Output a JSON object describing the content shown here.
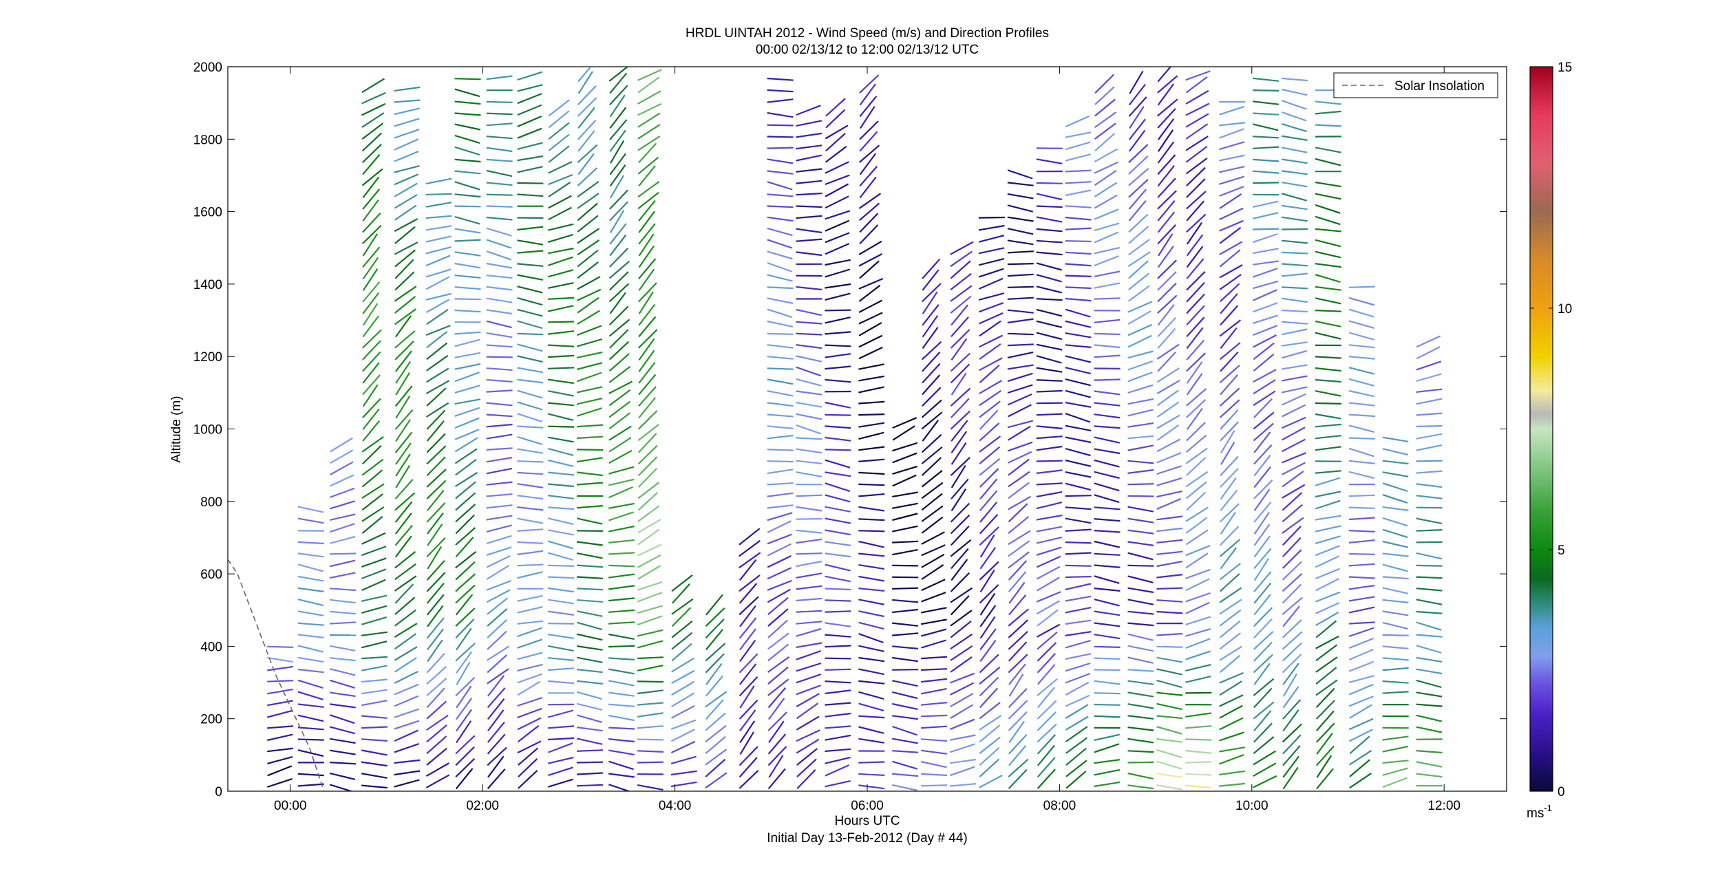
{
  "chart_data": {
    "type": "barb-profile",
    "title": "HRDL UINTAH 2012 - Wind Speed (m/s) and Direction Profiles",
    "subtitle": "00:00 02/13/12 to 12:00 02/13/12  UTC",
    "xlabel": "Hours UTC",
    "xlabel2": "Initial Day 13-Feb-2012 (Day # 44)",
    "ylabel": "Altitude (m)",
    "xlim_hours": [
      -0.65,
      12.65
    ],
    "ylim": [
      0,
      2000
    ],
    "x_ticks": [
      {
        "value": 0,
        "label": "00:00"
      },
      {
        "value": 2,
        "label": "02:00"
      },
      {
        "value": 4,
        "label": "04:00"
      },
      {
        "value": 6,
        "label": "06:00"
      },
      {
        "value": 8,
        "label": "08:00"
      },
      {
        "value": 10,
        "label": "10:00"
      },
      {
        "value": 12,
        "label": "12:00"
      }
    ],
    "y_ticks": [
      {
        "value": 0,
        "label": "0"
      },
      {
        "value": 200,
        "label": "200"
      },
      {
        "value": 400,
        "label": "400"
      },
      {
        "value": 600,
        "label": "600"
      },
      {
        "value": 800,
        "label": "800"
      },
      {
        "value": 1000,
        "label": "1000"
      },
      {
        "value": 1200,
        "label": "1200"
      },
      {
        "value": 1400,
        "label": "1400"
      },
      {
        "value": 1600,
        "label": "1600"
      },
      {
        "value": 1800,
        "label": "1800"
      },
      {
        "value": 2000,
        "label": "2000"
      }
    ],
    "legend": {
      "position": "top-right",
      "entries": [
        {
          "label": "Solar Insolation",
          "style": "dashed",
          "color": "#666666"
        }
      ]
    },
    "colorbar": {
      "min": 0,
      "max": 15,
      "ticks": [
        {
          "value": 0,
          "label": "0"
        },
        {
          "value": 5,
          "label": "5"
        },
        {
          "value": 10,
          "label": "10"
        },
        {
          "value": 15,
          "label": "15"
        }
      ],
      "unit_base": "ms",
      "unit_exp": "-1",
      "stops": [
        {
          "value": 0,
          "color": "#0a0a3a"
        },
        {
          "value": 0.8,
          "color": "#2a0f8c"
        },
        {
          "value": 1.6,
          "color": "#4a22c8"
        },
        {
          "value": 2.2,
          "color": "#6a50e0"
        },
        {
          "value": 2.8,
          "color": "#7fa0ec"
        },
        {
          "value": 3.4,
          "color": "#5aa0d8"
        },
        {
          "value": 3.9,
          "color": "#2d8a7a"
        },
        {
          "value": 4.4,
          "color": "#0a6a1e"
        },
        {
          "value": 5.0,
          "color": "#0c8a10"
        },
        {
          "value": 5.8,
          "color": "#3aa03a"
        },
        {
          "value": 6.8,
          "color": "#8acb8a"
        },
        {
          "value": 7.5,
          "color": "#c8e6c0"
        },
        {
          "value": 7.8,
          "color": "#b8b8b8"
        },
        {
          "value": 8.3,
          "color": "#f4ec9a"
        },
        {
          "value": 9.0,
          "color": "#f2d000"
        },
        {
          "value": 10.0,
          "color": "#f0a010"
        },
        {
          "value": 11.0,
          "color": "#d88a2a"
        },
        {
          "value": 12.0,
          "color": "#9a6a50"
        },
        {
          "value": 13.0,
          "color": "#e06070"
        },
        {
          "value": 14.0,
          "color": "#e83a5a"
        },
        {
          "value": 15.0,
          "color": "#a0001e"
        }
      ]
    },
    "solar_insolation": [
      {
        "t": -0.65,
        "z": 640
      },
      {
        "t": -0.55,
        "z": 600
      },
      {
        "t": -0.15,
        "z": 320
      },
      {
        "t": 0.2,
        "z": 120
      },
      {
        "t": 0.35,
        "z": 0
      }
    ],
    "profiles": [
      {
        "t": -0.2,
        "top": 420,
        "sfc": 0.2,
        "mid": 3,
        "dir": 1
      },
      {
        "t": 0.12,
        "top": 800,
        "sfc": 0.3,
        "mid": 3.2,
        "dir": 1
      },
      {
        "t": 0.45,
        "top": 960,
        "sfc": 0.2,
        "mid": 3.4,
        "dir": 1
      },
      {
        "t": 0.78,
        "top": 1950,
        "sfc": 0.4,
        "mid": 4.8,
        "dir": 1
      },
      {
        "t": 1.12,
        "top": 1940,
        "sfc": 0.5,
        "mid": 4.6,
        "dir": 1
      },
      {
        "t": 1.45,
        "top": 1700,
        "sfc": 0.6,
        "mid": 4.2,
        "dir": 1
      },
      {
        "t": 1.75,
        "top": 1990,
        "sfc": 0.6,
        "mid": 4.0,
        "dir": 1
      },
      {
        "t": 2.08,
        "top": 1980,
        "sfc": 0.7,
        "mid": 3.0,
        "dir": 1
      },
      {
        "t": 2.4,
        "top": 1980,
        "sfc": 0.8,
        "mid": 3.6,
        "dir": 1
      },
      {
        "t": 2.72,
        "top": 1900,
        "sfc": 0.9,
        "mid": 3.8,
        "dir": 1
      },
      {
        "t": 3.02,
        "top": 1990,
        "sfc": 1.0,
        "mid": 4.4,
        "dir": 1
      },
      {
        "t": 3.35,
        "top": 1990,
        "sfc": 1.0,
        "mid": 4.8,
        "dir": 1
      },
      {
        "t": 3.65,
        "top": 1990,
        "sfc": 1.2,
        "mid": 6.0,
        "dir": 1
      },
      {
        "t": 4.0,
        "top": 590,
        "sfc": 1.4,
        "mid": 4.4,
        "dir": 1
      },
      {
        "t": 4.35,
        "top": 500,
        "sfc": 1.6,
        "mid": 4.6,
        "dir": 1
      },
      {
        "t": 4.7,
        "top": 700,
        "sfc": 1.0,
        "mid": 2.0,
        "dir": 1
      },
      {
        "t": 5.0,
        "top": 1980,
        "sfc": 1.4,
        "mid": 2.4,
        "dir": 1
      },
      {
        "t": 5.3,
        "top": 1900,
        "sfc": 1.4,
        "mid": 2.0,
        "dir": 1
      },
      {
        "t": 5.6,
        "top": 1900,
        "sfc": 1.6,
        "mid": 1.4,
        "dir": 1
      },
      {
        "t": 5.95,
        "top": 1950,
        "sfc": 2.0,
        "mid": 0.8,
        "dir": 1
      },
      {
        "t": 6.3,
        "top": 1020,
        "sfc": 2.4,
        "mid": 0.6,
        "dir": 1
      },
      {
        "t": 6.6,
        "top": 1450,
        "sfc": 2.8,
        "mid": 0.8,
        "dir": 1
      },
      {
        "t": 6.9,
        "top": 1500,
        "sfc": 3.2,
        "mid": 1.0,
        "dir": 1
      },
      {
        "t": 7.2,
        "top": 1600,
        "sfc": 3.6,
        "mid": 1.2,
        "dir": 1
      },
      {
        "t": 7.5,
        "top": 1720,
        "sfc": 4.0,
        "mid": 1.4,
        "dir": 1
      },
      {
        "t": 7.8,
        "top": 1800,
        "sfc": 4.4,
        "mid": 1.6,
        "dir": 1
      },
      {
        "t": 8.1,
        "top": 1850,
        "sfc": 4.8,
        "mid": 1.8,
        "dir": 1
      },
      {
        "t": 8.4,
        "top": 1950,
        "sfc": 5.2,
        "mid": 2.0,
        "dir": 1
      },
      {
        "t": 8.75,
        "top": 1960,
        "sfc": 6.0,
        "mid": 2.2,
        "dir": 1
      },
      {
        "t": 9.05,
        "top": 1970,
        "sfc": 8.6,
        "mid": 2.0,
        "dir": 1
      },
      {
        "t": 9.35,
        "top": 1980,
        "sfc": 8.4,
        "mid": 2.2,
        "dir": 1
      },
      {
        "t": 9.7,
        "top": 1930,
        "sfc": 6.2,
        "mid": 2.6,
        "dir": 1
      },
      {
        "t": 10.05,
        "top": 1990,
        "sfc": 5.0,
        "mid": 3.0,
        "dir": 1
      },
      {
        "t": 10.35,
        "top": 1990,
        "sfc": 4.6,
        "mid": 2.8,
        "dir": 1
      },
      {
        "t": 10.7,
        "top": 1950,
        "sfc": 4.8,
        "mid": 4.0,
        "dir": 1
      },
      {
        "t": 11.05,
        "top": 1420,
        "sfc": 4.4,
        "mid": 2.4,
        "dir": 1
      },
      {
        "t": 11.4,
        "top": 1000,
        "sfc": 7.0,
        "mid": 2.6,
        "dir": 1
      },
      {
        "t": 11.75,
        "top": 1250,
        "sfc": 6.6,
        "mid": 3.0,
        "dir": 1
      }
    ]
  }
}
